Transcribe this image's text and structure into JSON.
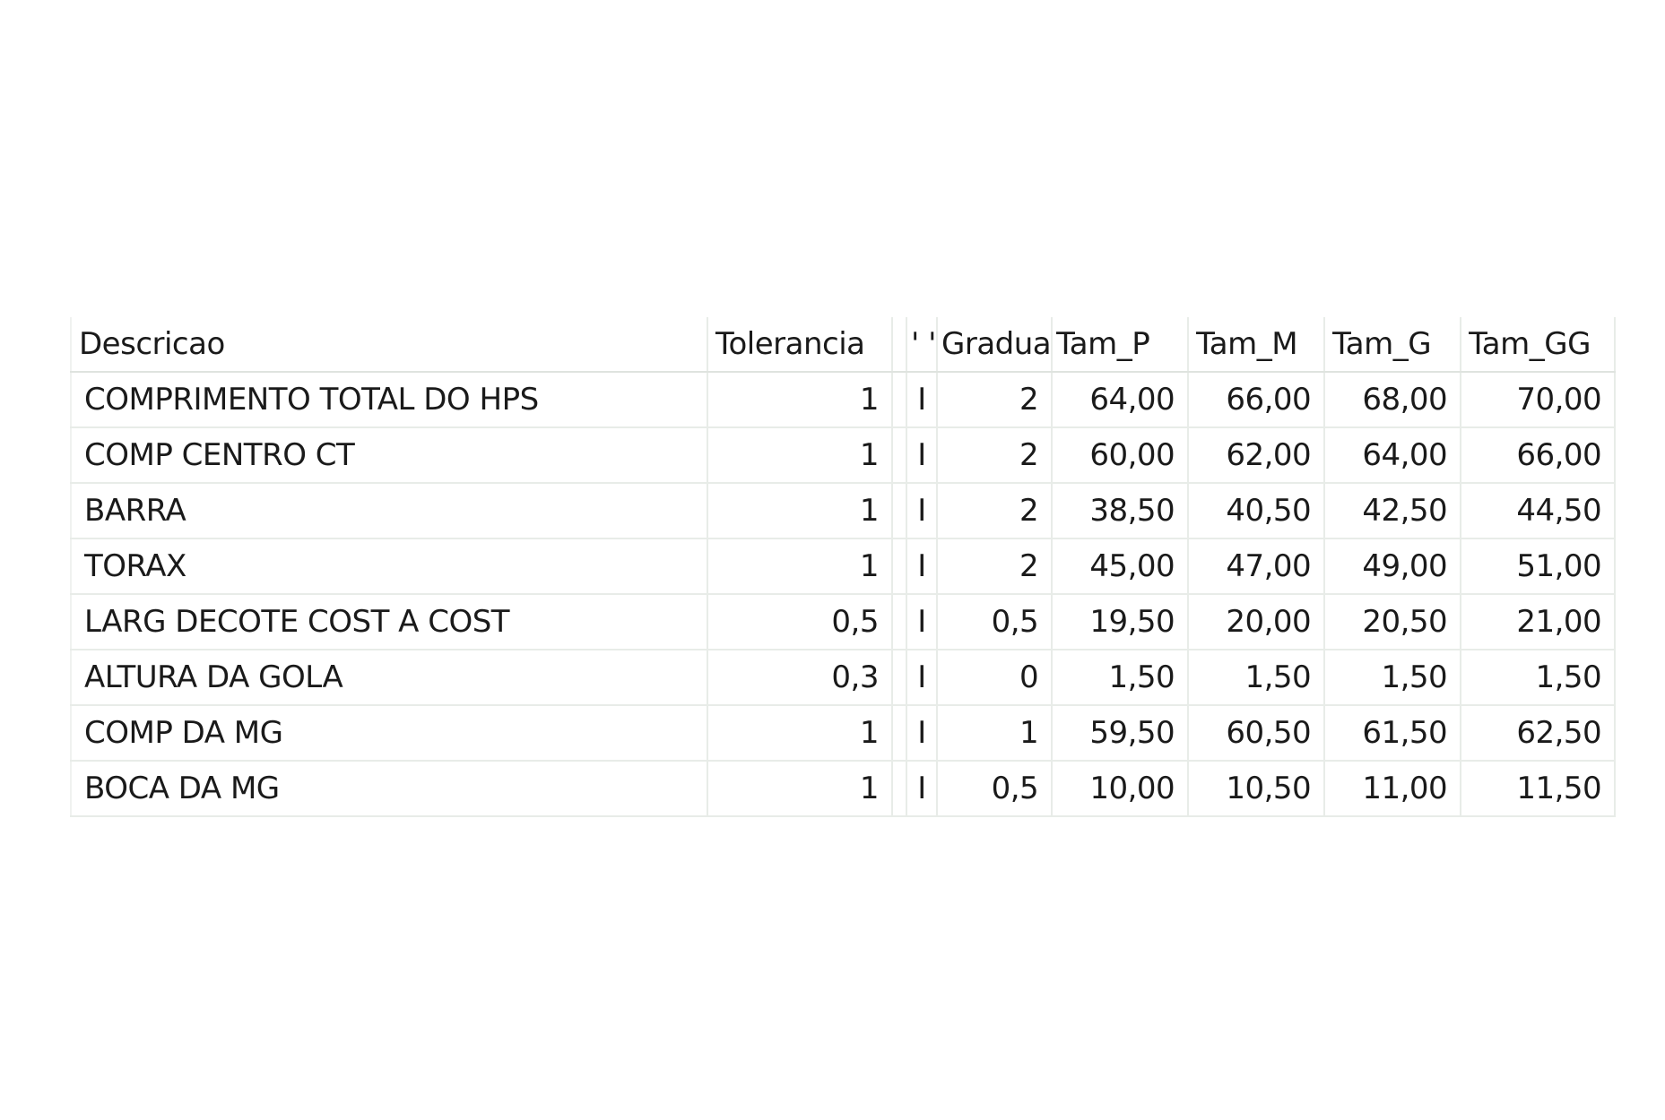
{
  "table": {
    "columns": [
      "Descricao",
      "Tolerancia",
      "",
      "' '",
      "Gradua",
      "Tam_P",
      "Tam_M",
      "Tam_G",
      "Tam_GG"
    ],
    "rows": [
      [
        "COMPRIMENTO TOTAL DO HPS",
        "1",
        "",
        "I",
        "2",
        "64,00",
        "66,00",
        "68,00",
        "70,00"
      ],
      [
        "COMP CENTRO CT",
        "1",
        "",
        "I",
        "2",
        "60,00",
        "62,00",
        "64,00",
        "66,00"
      ],
      [
        "BARRA",
        "1",
        "",
        "I",
        "2",
        "38,50",
        "40,50",
        "42,50",
        "44,50"
      ],
      [
        "TORAX",
        "1",
        "",
        "I",
        "2",
        "45,00",
        "47,00",
        "49,00",
        "51,00"
      ],
      [
        "LARG DECOTE COST A COST",
        "0,5",
        "",
        "I",
        "0,5",
        "19,50",
        "20,00",
        "20,50",
        "21,00"
      ],
      [
        "ALTURA DA GOLA",
        "0,3",
        "",
        "I",
        "0",
        "1,50",
        "1,50",
        "1,50",
        "1,50"
      ],
      [
        "COMP DA MG",
        "1",
        "",
        "I",
        "1",
        "59,50",
        "60,50",
        "61,50",
        "62,50"
      ],
      [
        "BOCA DA MG",
        "1",
        "",
        "I",
        "0,5",
        "10,00",
        "10,50",
        "11,00",
        "11,50"
      ]
    ]
  }
}
